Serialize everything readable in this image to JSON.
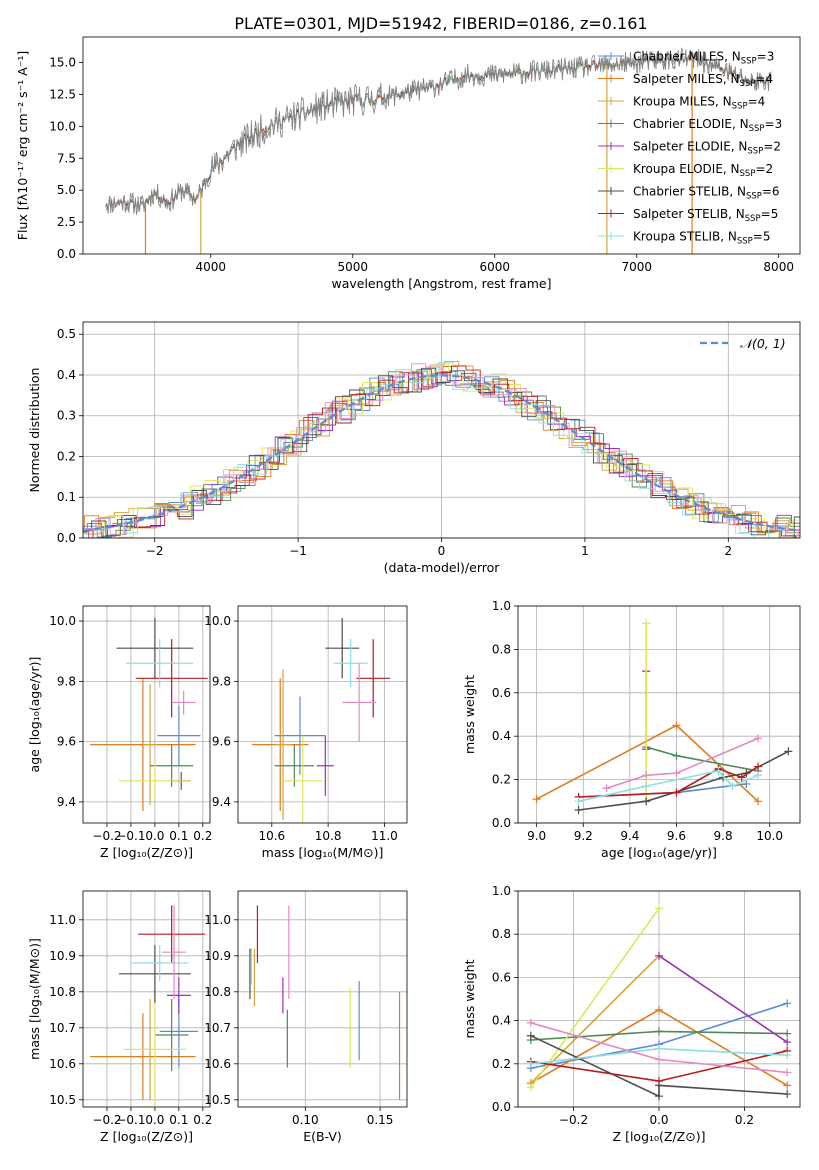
{
  "figure_title": "PLATE=0301, MJD=51942, FIBERID=0186, z=0.161",
  "chart_data": [
    {
      "id": "spectrum",
      "type": "line",
      "xlabel": "wavelength [Angstrom, rest frame]",
      "ylabel": "Flux [fλ10⁻¹⁷ erg cm⁻² s⁻¹ A⁻¹]",
      "xlim": [
        3100,
        8150
      ],
      "ylim": [
        0,
        17
      ],
      "xticks": [
        4000,
        5000,
        6000,
        7000,
        8000
      ],
      "yticks": [
        0.0,
        2.5,
        5.0,
        7.5,
        10.0,
        12.5,
        15.0
      ],
      "grid": false,
      "legend_position": "top-right",
      "legend": [
        {
          "label": "Chabrier MILES, N_SSP=3",
          "color": "#5b8bd6"
        },
        {
          "label": "Salpeter MILES, N_SSP=4",
          "color": "#e07b1e"
        },
        {
          "label": "Kroupa MILES, N_SSP=4",
          "color": "#d4a53a"
        },
        {
          "label": "Chabrier ELODIE, N_SSP=3",
          "color": "#4e8a55"
        },
        {
          "label": "Salpeter ELODIE, N_SSP=2",
          "color": "#9b30b8"
        },
        {
          "label": "Kroupa ELODIE, N_SSP=2",
          "color": "#dde65a"
        },
        {
          "label": "Chabrier STELIB, N_SSP=6",
          "color": "#4d4d4d"
        },
        {
          "label": "Salpeter STELIB, N_SSP=5",
          "color": "#b51d1d"
        },
        {
          "label": "Kroupa STELIB, N_SSP=5",
          "color": "#8fdde0"
        }
      ],
      "spectrum_knots": [
        [
          3260,
          3.9
        ],
        [
          3400,
          4.1
        ],
        [
          3520,
          3.8
        ],
        [
          3600,
          4.8
        ],
        [
          3700,
          4.0
        ],
        [
          3800,
          5.0
        ],
        [
          3900,
          4.3
        ],
        [
          4000,
          6.5
        ],
        [
          4100,
          7.6
        ],
        [
          4200,
          8.6
        ],
        [
          4300,
          9.3
        ],
        [
          4400,
          10.0
        ],
        [
          4600,
          10.8
        ],
        [
          4800,
          11.6
        ],
        [
          5000,
          12.0
        ],
        [
          5200,
          12.2
        ],
        [
          5400,
          12.7
        ],
        [
          5600,
          13.2
        ],
        [
          5800,
          14.0
        ],
        [
          6000,
          14.0
        ],
        [
          6200,
          14.2
        ],
        [
          6400,
          14.4
        ],
        [
          6600,
          14.6
        ],
        [
          6800,
          14.8
        ],
        [
          7000,
          15.0
        ],
        [
          7200,
          15.2
        ],
        [
          7400,
          15.3
        ],
        [
          7600,
          14.5
        ],
        [
          7800,
          13.5
        ],
        [
          7950,
          13.6
        ]
      ],
      "absorption_dips": [
        [
          3540,
          0.0
        ],
        [
          3930,
          0.0
        ],
        [
          6790,
          0.0
        ],
        [
          7390,
          0.0
        ]
      ]
    },
    {
      "id": "residuals",
      "type": "line",
      "xlabel": "(data-model)/error",
      "ylabel": "Normed distribution",
      "xlim": [
        -2.5,
        2.5
      ],
      "ylim": [
        0,
        0.53
      ],
      "xticks": [
        -2,
        -1,
        0,
        1,
        2
      ],
      "yticks": [
        0.0,
        0.1,
        0.2,
        0.3,
        0.4,
        0.5
      ],
      "grid": true,
      "legend_position": "top-right",
      "legend": [
        {
          "label": "𝒩(0, 1)",
          "color": "#5b8bd6",
          "style": "dashed"
        }
      ],
      "gaussian": {
        "mu": 0,
        "sigma": 1
      },
      "bin_width": 0.1
    },
    {
      "id": "age-vs-Z",
      "type": "scatter",
      "xlabel": "Z [log₁₀(Z/Z⊙)]",
      "ylabel": "age  [log₁₀(age/yr)]",
      "xlim": [
        -0.3,
        0.23
      ],
      "ylim": [
        9.33,
        10.05
      ],
      "xticks": [
        -0.2,
        -0.1,
        0.0,
        0.1,
        0.2
      ],
      "yticks": [
        9.4,
        9.6,
        9.8,
        10.0
      ],
      "grid": true,
      "points": [
        {
          "color": "#5b8bd6",
          "x": 0.1,
          "xerr": 0.09,
          "y": 9.62,
          "yerr": 0.1
        },
        {
          "color": "#e07b1e",
          "x": -0.05,
          "xerr": 0.22,
          "y": 9.59,
          "yerr": 0.22
        },
        {
          "color": "#d4a53a",
          "x": -0.02,
          "xerr": 0.03,
          "y": 9.59,
          "yerr": 0.2
        },
        {
          "color": "#4e8a55",
          "x": 0.07,
          "xerr": 0.09,
          "y": 9.52,
          "yerr": 0.07
        },
        {
          "color": "#9b30b8",
          "x": 0.11,
          "xerr": 0.04,
          "y": 9.47,
          "yerr": 0.03
        },
        {
          "color": "#dde65a",
          "x": 0.0,
          "xerr": 0.15,
          "y": 9.47,
          "yerr": 0.06
        },
        {
          "color": "#4d4d4d",
          "x": 0.0,
          "xerr": 0.16,
          "y": 9.91,
          "yerr": 0.1
        },
        {
          "color": "#b51d1d",
          "x": 0.07,
          "xerr": 0.15,
          "y": 9.81,
          "yerr": 0.13
        },
        {
          "color": "#8fdde0",
          "x": 0.02,
          "xerr": 0.14,
          "y": 9.86,
          "yerr": 0.08
        },
        {
          "color": "#e38ac2",
          "x": 0.12,
          "xerr": 0.05,
          "y": 9.73,
          "yerr": 0.04
        }
      ]
    },
    {
      "id": "age-vs-mass",
      "type": "scatter",
      "xlabel": "mass [log₁₀(M/M⊙)]",
      "ylabel": "",
      "xlim": [
        10.48,
        11.08
      ],
      "ylim": [
        9.33,
        10.05
      ],
      "xticks": [
        10.6,
        10.8,
        11.0
      ],
      "yticks": [
        9.4,
        9.6,
        9.8,
        10.0
      ],
      "grid": true,
      "points": [
        {
          "color": "#5b8bd6",
          "x": 10.7,
          "xerr": 0.09,
          "y": 9.62,
          "yerr": 0.13
        },
        {
          "color": "#e07b1e",
          "x": 10.63,
          "xerr": 0.1,
          "y": 9.59,
          "yerr": 0.22
        },
        {
          "color": "#d4a53a",
          "x": 10.64,
          "xerr": 0.03,
          "y": 9.59,
          "yerr": 0.25
        },
        {
          "color": "#4e8a55",
          "x": 10.68,
          "xerr": 0.07,
          "y": 9.52,
          "yerr": 0.07
        },
        {
          "color": "#9b30b8",
          "x": 10.79,
          "xerr": 0.03,
          "y": 9.52,
          "yerr": 0.1
        },
        {
          "color": "#dde65a",
          "x": 10.71,
          "xerr": 0.07,
          "y": 9.47,
          "yerr": 0.15
        },
        {
          "color": "#4d4d4d",
          "x": 10.85,
          "xerr": 0.06,
          "y": 9.91,
          "yerr": 0.1
        },
        {
          "color": "#b51d1d",
          "x": 10.96,
          "xerr": 0.06,
          "y": 9.81,
          "yerr": 0.13
        },
        {
          "color": "#8fdde0",
          "x": 10.88,
          "xerr": 0.06,
          "y": 9.86,
          "yerr": 0.08
        },
        {
          "color": "#e38ac2",
          "x": 10.91,
          "xerr": 0.06,
          "y": 9.73,
          "yerr": 0.13
        }
      ]
    },
    {
      "id": "weight-vs-age",
      "type": "line",
      "xlabel": "age  [log₁₀(age/yr)]",
      "ylabel": "mass weight",
      "xlim": [
        8.92,
        10.13
      ],
      "ylim": [
        0.0,
        1.0
      ],
      "xticks": [
        9.0,
        9.2,
        9.4,
        9.6,
        9.8,
        10.0
      ],
      "yticks": [
        0.0,
        0.2,
        0.4,
        0.6,
        0.8,
        1.0
      ],
      "grid": true,
      "series": [
        {
          "color": "#5b8bd6",
          "x": [
            9.18,
            9.6,
            9.9
          ],
          "y": [
            0.12,
            0.14,
            0.18
          ]
        },
        {
          "color": "#e07b1e",
          "x": [
            9.0,
            9.6,
            9.95
          ],
          "y": [
            0.11,
            0.45,
            0.1
          ]
        },
        {
          "color": "#d4a53a",
          "x": [
            9.47,
            9.47
          ],
          "y": [
            0.7,
            0.34
          ]
        },
        {
          "color": "#4e8a55",
          "x": [
            9.47,
            9.6,
            9.95
          ],
          "y": [
            0.35,
            0.31,
            0.24
          ]
        },
        {
          "color": "#9b30b8",
          "x": [
            9.47,
            9.47
          ],
          "y": [
            0.7,
            0.34
          ]
        },
        {
          "color": "#dde65a",
          "x": [
            9.47,
            9.47
          ],
          "y": [
            0.92,
            0.1
          ]
        },
        {
          "color": "#4d4d4d",
          "x": [
            9.18,
            9.47,
            9.8,
            9.9,
            10.08
          ],
          "y": [
            0.06,
            0.1,
            0.21,
            0.23,
            0.33
          ]
        },
        {
          "color": "#b51d1d",
          "x": [
            9.18,
            9.6,
            9.78,
            9.88,
            9.95
          ],
          "y": [
            0.12,
            0.14,
            0.25,
            0.21,
            0.26
          ]
        },
        {
          "color": "#8fdde0",
          "x": [
            9.18,
            9.47,
            9.78,
            9.84,
            9.95
          ],
          "y": [
            0.1,
            0.17,
            0.24,
            0.17,
            0.22
          ]
        },
        {
          "color": "#e38ac2",
          "x": [
            9.3,
            9.47,
            9.6,
            9.95
          ],
          "y": [
            0.16,
            0.22,
            0.23,
            0.39
          ]
        }
      ]
    },
    {
      "id": "mass-vs-Z",
      "type": "scatter",
      "xlabel": "Z [log₁₀(Z/Z⊙)]",
      "ylabel": "mass [log₁₀(M/M⊙)]",
      "xlim": [
        -0.3,
        0.23
      ],
      "ylim": [
        10.48,
        11.08
      ],
      "xticks": [
        -0.2,
        -0.1,
        0.0,
        0.1,
        0.2
      ],
      "yticks": [
        10.5,
        10.6,
        10.7,
        10.8,
        10.9,
        11.0
      ],
      "grid": true,
      "points": [
        {
          "color": "#5b8bd6",
          "x": 0.1,
          "xerr": 0.08,
          "y": 10.69,
          "yerr": 0.1
        },
        {
          "color": "#e07b1e",
          "x": -0.05,
          "xerr": 0.22,
          "y": 10.62,
          "yerr": 0.12
        },
        {
          "color": "#d4a53a",
          "x": -0.02,
          "xerr": 0.02,
          "y": 10.64,
          "yerr": 0.14
        },
        {
          "color": "#4e8a55",
          "x": 0.07,
          "xerr": 0.07,
          "y": 10.68,
          "yerr": 0.1
        },
        {
          "color": "#9b30b8",
          "x": 0.1,
          "xerr": 0.05,
          "y": 10.79,
          "yerr": 0.05
        },
        {
          "color": "#dde65a",
          "x": 0.0,
          "xerr": 0.13,
          "y": 10.64,
          "yerr": 0.17
        },
        {
          "color": "#4d4d4d",
          "x": 0.0,
          "xerr": 0.15,
          "y": 10.85,
          "yerr": 0.08
        },
        {
          "color": "#b51d1d",
          "x": 0.07,
          "xerr": 0.14,
          "y": 10.96,
          "yerr": 0.08
        },
        {
          "color": "#8fdde0",
          "x": 0.02,
          "xerr": 0.12,
          "y": 10.88,
          "yerr": 0.05
        },
        {
          "color": "#e38ac2",
          "x": 0.08,
          "xerr": 0.05,
          "y": 10.91,
          "yerr": 0.13
        }
      ]
    },
    {
      "id": "mass-vs-EBV",
      "type": "scatter",
      "xlabel": "E(B-V)",
      "ylabel": "",
      "xlim": [
        0.055,
        0.168
      ],
      "ylim": [
        10.48,
        11.08
      ],
      "xticks": [
        0.1,
        0.15
      ],
      "yticks": [
        10.5,
        10.6,
        10.7,
        10.8,
        10.9,
        11.0
      ],
      "grid": true,
      "points": [
        {
          "color": "#5b8bd6",
          "x": 0.136,
          "xerr": 0,
          "y": 10.72,
          "yerr": 0.11
        },
        {
          "color": "#e07b1e",
          "x": 0.163,
          "xerr": 0,
          "y": 10.65,
          "yerr": 0.15
        },
        {
          "color": "#d4a53a",
          "x": 0.066,
          "xerr": 0,
          "y": 10.84,
          "yerr": 0.08
        },
        {
          "color": "#4e8a55",
          "x": 0.088,
          "xerr": 0,
          "y": 10.67,
          "yerr": 0.08
        },
        {
          "color": "#9b30b8",
          "x": 0.085,
          "xerr": 0,
          "y": 10.79,
          "yerr": 0.05
        },
        {
          "color": "#dde65a",
          "x": 0.13,
          "xerr": 0,
          "y": 10.7,
          "yerr": 0.11
        },
        {
          "color": "#4d4d4d",
          "x": 0.063,
          "xerr": 0,
          "y": 10.85,
          "yerr": 0.07
        },
        {
          "color": "#b51d1d",
          "x": 0.068,
          "xerr": 0,
          "y": 10.96,
          "yerr": 0.08
        },
        {
          "color": "#8fdde0",
          "x": 0.064,
          "xerr": 0,
          "y": 10.87,
          "yerr": 0.05
        },
        {
          "color": "#e38ac2",
          "x": 0.089,
          "xerr": 0,
          "y": 10.91,
          "yerr": 0.13
        }
      ]
    },
    {
      "id": "weight-vs-Z",
      "type": "line",
      "xlabel": "Z [log₁₀(Z/Z⊙)]",
      "ylabel": "mass weight",
      "xlim": [
        -0.33,
        0.33
      ],
      "ylim": [
        0.0,
        1.0
      ],
      "xticks": [
        -0.2,
        0.0,
        0.2
      ],
      "yticks": [
        0.0,
        0.2,
        0.4,
        0.6,
        0.8,
        1.0
      ],
      "grid": true,
      "series": [
        {
          "color": "#5b8bd6",
          "x": [
            -0.3,
            0.0,
            0.3
          ],
          "y": [
            0.18,
            0.29,
            0.48
          ]
        },
        {
          "color": "#e07b1e",
          "x": [
            -0.3,
            0.0,
            0.3
          ],
          "y": [
            0.11,
            0.45,
            0.1
          ]
        },
        {
          "color": "#d4a53a",
          "x": [
            -0.3,
            0.0
          ],
          "y": [
            0.11,
            0.7
          ]
        },
        {
          "color": "#4e8a55",
          "x": [
            -0.3,
            0.0,
            0.3
          ],
          "y": [
            0.31,
            0.35,
            0.34
          ]
        },
        {
          "color": "#9b30b8",
          "x": [
            0.0,
            0.3
          ],
          "y": [
            0.7,
            0.3
          ]
        },
        {
          "color": "#dde65a",
          "x": [
            -0.3,
            0.0
          ],
          "y": [
            0.09,
            0.92
          ]
        },
        {
          "color": "#4d4d4d",
          "x": [
            -0.3,
            0.0,
            0.0,
            0.3
          ],
          "y": [
            0.33,
            0.05,
            0.1,
            0.06
          ]
        },
        {
          "color": "#b51d1d",
          "x": [
            -0.3,
            0.0,
            0.3
          ],
          "y": [
            0.21,
            0.12,
            0.26
          ]
        },
        {
          "color": "#8fdde0",
          "x": [
            -0.3,
            0.0,
            0.3
          ],
          "y": [
            0.2,
            0.27,
            0.24
          ]
        },
        {
          "color": "#e38ac2",
          "x": [
            -0.3,
            0.0,
            0.3
          ],
          "y": [
            0.39,
            0.22,
            0.16
          ]
        }
      ]
    }
  ]
}
